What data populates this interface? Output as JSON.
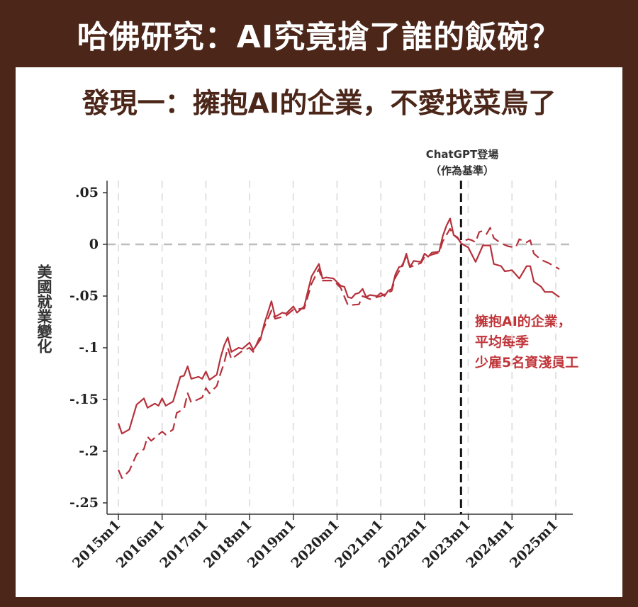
{
  "header": {
    "title": "哈佛研究：AI究竟搶了誰的飯碗？"
  },
  "subtitle": "發現一：擁抱AI的企業，不愛找菜鳥了",
  "colors": {
    "background": "#4b2619",
    "line": "#b5313b",
    "annotation": "#c0353a"
  },
  "chart_data": {
    "type": "line",
    "ylabel": "美國就業變化",
    "ylim": [
      -0.25,
      0.05
    ],
    "yticks": [
      {
        "v": 0.05,
        "label": ".05"
      },
      {
        "v": 0,
        "label": "0"
      },
      {
        "v": -0.05,
        "label": "-.05"
      },
      {
        "v": -0.1,
        "label": "-.1"
      },
      {
        "v": -0.15,
        "label": "-.15"
      },
      {
        "v": -0.2,
        "label": "-.2"
      },
      {
        "v": -0.25,
        "label": "-.25"
      }
    ],
    "xticks": [
      "2015m1",
      "2016m1",
      "2017m1",
      "2018m1",
      "2019m1",
      "2020m1",
      "2021m1",
      "2022m1",
      "2023m1",
      "2024m1",
      "2025m1"
    ],
    "grid": "vertical dashed",
    "reference_line": {
      "x": "2022m11",
      "label_line1": "ChatGPT登場",
      "label_line2": "（作為基準）"
    },
    "zero_line": 0,
    "annotation": [
      "擁抱AI的企業，",
      "平均每季",
      "少雇5名資淺員工"
    ],
    "series": [
      {
        "style": "solid",
        "points": [
          [
            "2015m1",
            -0.173
          ],
          [
            "2015m2",
            -0.183
          ],
          [
            "2015m4",
            -0.179
          ],
          [
            "2015m6",
            -0.155
          ],
          [
            "2015m8",
            -0.149
          ],
          [
            "2015m9",
            -0.158
          ],
          [
            "2015m11",
            -0.154
          ],
          [
            "2015m12",
            -0.156
          ],
          [
            "2016m1",
            -0.149
          ],
          [
            "2016m2",
            -0.156
          ],
          [
            "2016m4",
            -0.152
          ],
          [
            "2016m6",
            -0.128
          ],
          [
            "2016m7",
            -0.127
          ],
          [
            "2016m8",
            -0.118
          ],
          [
            "2016m9",
            -0.13
          ],
          [
            "2016m11",
            -0.128
          ],
          [
            "2016m12",
            -0.13
          ],
          [
            "2017m1",
            -0.123
          ],
          [
            "2017m2",
            -0.131
          ],
          [
            "2017m4",
            -0.126
          ],
          [
            "2017m5",
            -0.11
          ],
          [
            "2017m6",
            -0.098
          ],
          [
            "2017m7",
            -0.09
          ],
          [
            "2017m8",
            -0.104
          ],
          [
            "2017m10",
            -0.1
          ],
          [
            "2017m11",
            -0.101
          ],
          [
            "2018m1",
            -0.095
          ],
          [
            "2018m2",
            -0.102
          ],
          [
            "2018m4",
            -0.092
          ],
          [
            "2018m5",
            -0.077
          ],
          [
            "2018m6",
            -0.066
          ],
          [
            "2018m7",
            -0.055
          ],
          [
            "2018m8",
            -0.07
          ],
          [
            "2018m10",
            -0.066
          ],
          [
            "2018m11",
            -0.067
          ],
          [
            "2019m1",
            -0.06
          ],
          [
            "2019m2",
            -0.066
          ],
          [
            "2019m4",
            -0.06
          ],
          [
            "2019m5",
            -0.045
          ],
          [
            "2019m6",
            -0.031
          ],
          [
            "2019m8",
            -0.019
          ],
          [
            "2019m9",
            -0.033
          ],
          [
            "2019m10",
            -0.032
          ],
          [
            "2019m12",
            -0.033
          ],
          [
            "2020m2",
            -0.04
          ],
          [
            "2020m3",
            -0.041
          ],
          [
            "2020m4",
            -0.051
          ],
          [
            "2020m5",
            -0.052
          ],
          [
            "2020m6",
            -0.048
          ],
          [
            "2020m7",
            -0.047
          ],
          [
            "2020m8",
            -0.043
          ],
          [
            "2020m9",
            -0.051
          ],
          [
            "2020m10",
            -0.049
          ],
          [
            "2020m12",
            -0.05
          ],
          [
            "2021m1",
            -0.047
          ],
          [
            "2021m2",
            -0.05
          ],
          [
            "2021m3",
            -0.045
          ],
          [
            "2021m4",
            -0.043
          ],
          [
            "2021m5",
            -0.029
          ],
          [
            "2021m6",
            -0.022
          ],
          [
            "2021m7",
            -0.021
          ],
          [
            "2021m8",
            -0.009
          ],
          [
            "2021m9",
            -0.022
          ],
          [
            "2021m10",
            -0.016
          ],
          [
            "2021m12",
            -0.017
          ],
          [
            "2022m1",
            -0.009
          ],
          [
            "2022m2",
            -0.012
          ],
          [
            "2022m3",
            -0.008
          ],
          [
            "2022m5",
            -0.007
          ],
          [
            "2022m6",
            0.008
          ],
          [
            "2022m7",
            0.018
          ],
          [
            "2022m8",
            0.025
          ],
          [
            "2022m9",
            0.009
          ],
          [
            "2022m10",
            0.007
          ],
          [
            "2022m11",
            0.001
          ],
          [
            "2023m1",
            -0.003
          ],
          [
            "2023m2",
            -0.01
          ],
          [
            "2023m3",
            -0.017
          ],
          [
            "2023m5",
            -0.001
          ],
          [
            "2023m6",
            -0.001
          ],
          [
            "2023m7",
            -0.001
          ],
          [
            "2023m8",
            -0.019
          ],
          [
            "2023m10",
            -0.021
          ],
          [
            "2023m11",
            -0.026
          ],
          [
            "2024m1",
            -0.025
          ],
          [
            "2024m3",
            -0.033
          ],
          [
            "2024m5",
            -0.021
          ],
          [
            "2024m6",
            -0.021
          ],
          [
            "2024m7",
            -0.036
          ],
          [
            "2024m9",
            -0.041
          ],
          [
            "2024m10",
            -0.046
          ],
          [
            "2024m12",
            -0.046
          ],
          [
            "2025m2",
            -0.051
          ]
        ]
      },
      {
        "style": "dashed",
        "points": [
          [
            "2015m1",
            -0.218
          ],
          [
            "2015m2",
            -0.226
          ],
          [
            "2015m4",
            -0.219
          ],
          [
            "2015m6",
            -0.203
          ],
          [
            "2015m8",
            -0.198
          ],
          [
            "2015m9",
            -0.186
          ],
          [
            "2015m10",
            -0.19
          ],
          [
            "2015m11",
            -0.187
          ],
          [
            "2016m1",
            -0.181
          ],
          [
            "2016m2",
            -0.184
          ],
          [
            "2016m4",
            -0.179
          ],
          [
            "2016m5",
            -0.163
          ],
          [
            "2016m7",
            -0.159
          ],
          [
            "2016m8",
            -0.144
          ],
          [
            "2016m9",
            -0.153
          ],
          [
            "2016m12",
            -0.148
          ],
          [
            "2017m1",
            -0.139
          ],
          [
            "2017m2",
            -0.144
          ],
          [
            "2017m4",
            -0.137
          ],
          [
            "2017m5",
            -0.125
          ],
          [
            "2017m6",
            -0.115
          ],
          [
            "2017m7",
            -0.1
          ],
          [
            "2017m8",
            -0.111
          ],
          [
            "2017m11",
            -0.103
          ],
          [
            "2018m1",
            -0.1
          ],
          [
            "2018m2",
            -0.104
          ],
          [
            "2018m5",
            -0.08
          ],
          [
            "2018m7",
            -0.064
          ],
          [
            "2018m8",
            -0.072
          ],
          [
            "2018m11",
            -0.069
          ],
          [
            "2019m1",
            -0.063
          ],
          [
            "2019m4",
            -0.062
          ],
          [
            "2019m6",
            -0.038
          ],
          [
            "2019m8",
            -0.024
          ],
          [
            "2019m9",
            -0.035
          ],
          [
            "2019m12",
            -0.035
          ],
          [
            "2020m2",
            -0.042
          ],
          [
            "2020m4",
            -0.059
          ],
          [
            "2020m7",
            -0.058
          ],
          [
            "2020m8",
            -0.05
          ],
          [
            "2020m10",
            -0.053
          ],
          [
            "2021m1",
            -0.05
          ],
          [
            "2021m4",
            -0.045
          ],
          [
            "2021m5",
            -0.032
          ],
          [
            "2021m6",
            -0.026
          ],
          [
            "2021m8",
            -0.012
          ],
          [
            "2021m9",
            -0.022
          ],
          [
            "2021m12",
            -0.018
          ],
          [
            "2022m1",
            -0.012
          ],
          [
            "2022m3",
            -0.01
          ],
          [
            "2022m5",
            -0.008
          ],
          [
            "2022m6",
            0.003
          ],
          [
            "2022m8",
            0.015
          ],
          [
            "2022m9",
            0.009
          ],
          [
            "2022m10",
            0.006
          ],
          [
            "2022m11",
            0.002
          ],
          [
            "2023m1",
            0.005
          ],
          [
            "2023m2",
            0.004
          ],
          [
            "2023m3",
            0.002
          ],
          [
            "2023m4",
            0.012
          ],
          [
            "2023m5",
            0.013
          ],
          [
            "2023m6",
            0.01
          ],
          [
            "2023m7",
            0.016
          ],
          [
            "2023m8",
            0.006
          ],
          [
            "2023m10",
            0.001
          ],
          [
            "2023m12",
            -0.002
          ],
          [
            "2024m2",
            -0.003
          ],
          [
            "2024m3",
            0.005
          ],
          [
            "2024m5",
            0.002
          ],
          [
            "2024m6",
            0.004
          ],
          [
            "2024m7",
            -0.009
          ],
          [
            "2024m9",
            -0.015
          ],
          [
            "2024m11",
            -0.018
          ],
          [
            "2025m2",
            -0.024
          ]
        ]
      }
    ]
  }
}
